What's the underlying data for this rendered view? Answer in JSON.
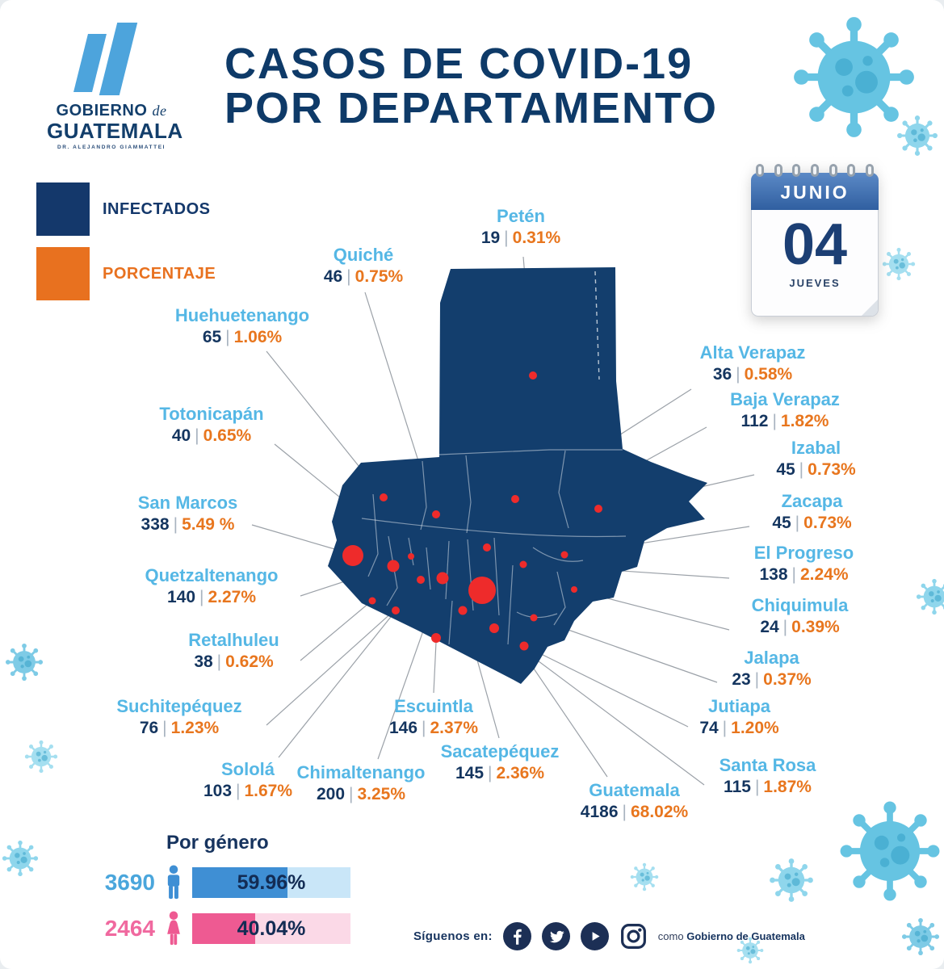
{
  "logo": {
    "gobierno": "GOBIERNO",
    "de": "de",
    "guatemala": "GUATEMALA",
    "subtitle": "DR. ALEJANDRO GIAMMATTEI"
  },
  "title": {
    "line1": "CASOS DE COVID-19",
    "line2": "POR DEPARTAMENTO"
  },
  "legend": {
    "infectados": "INFECTADOS",
    "porcentaje": "PORCENTAJE"
  },
  "calendar": {
    "month": "JUNIO",
    "day": "04",
    "weekday": "JUEVES"
  },
  "separator": "|",
  "departments": {
    "peten": {
      "name": "Petén",
      "cases": "19",
      "pct": "0.31%"
    },
    "quiche": {
      "name": "Quiché",
      "cases": "46",
      "pct": "0.75%"
    },
    "huehuetenango": {
      "name": "Huehuetenango",
      "cases": "65",
      "pct": "1.06%"
    },
    "totonicapan": {
      "name": "Totonicapán",
      "cases": "40",
      "pct": "0.65%"
    },
    "san_marcos": {
      "name": "San Marcos",
      "cases": "338",
      "pct": "5.49 %"
    },
    "quetzaltenango": {
      "name": "Quetzaltenango",
      "cases": "140",
      "pct": "2.27%"
    },
    "retalhuleu": {
      "name": "Retalhuleu",
      "cases": "38",
      "pct": "0.62%"
    },
    "suchitepequez": {
      "name": "Suchitepéquez",
      "cases": "76",
      "pct": "1.23%"
    },
    "solola": {
      "name": "Sololá",
      "cases": "103",
      "pct": "1.67%"
    },
    "chimaltenango": {
      "name": "Chimaltenango",
      "cases": "200",
      "pct": "3.25%"
    },
    "escuintla": {
      "name": "Escuintla",
      "cases": "146",
      "pct": "2.37%"
    },
    "sacatepequez": {
      "name": "Sacatepéquez",
      "cases": "145",
      "pct": "2.36%"
    },
    "guatemala_dept": {
      "name": "Guatemala",
      "cases": "4186",
      "pct": "68.02%"
    },
    "alta_verapaz": {
      "name": "Alta Verapaz",
      "cases": "36",
      "pct": "0.58%"
    },
    "baja_verapaz": {
      "name": "Baja Verapaz",
      "cases": "112",
      "pct": "1.82%"
    },
    "izabal": {
      "name": "Izabal",
      "cases": "45",
      "pct": "0.73%"
    },
    "zacapa": {
      "name": "Zacapa",
      "cases": "45",
      "pct": "0.73%"
    },
    "el_progreso": {
      "name": "El Progreso",
      "cases": "138",
      "pct": "2.24%"
    },
    "chiquimula": {
      "name": "Chiquimula",
      "cases": "24",
      "pct": "0.39%"
    },
    "jalapa": {
      "name": "Jalapa",
      "cases": "23",
      "pct": "0.37%"
    },
    "jutiapa": {
      "name": "Jutiapa",
      "cases": "74",
      "pct": "1.20%"
    },
    "santa_rosa": {
      "name": "Santa Rosa",
      "cases": "115",
      "pct": "1.87%"
    }
  },
  "gender": {
    "title": "Por género",
    "male": {
      "count": "3690",
      "pct": "59.96%",
      "pct_value": 59.96
    },
    "female": {
      "count": "2464",
      "pct": "40.04%",
      "pct_value": 40.04
    }
  },
  "footer": {
    "follow": "Síguenos en:",
    "como": "como",
    "account": "Gobierno de Guatemala"
  },
  "colors": {
    "navy": "#14386b",
    "orange": "#e8711f",
    "light_blue": "#55b7e5",
    "red_dot": "#ee2b2b",
    "map_fill": "#133e6d",
    "male_blue": "#3f8fd4",
    "female_pink": "#ee5a92",
    "virus_teal": "#7ecbe6"
  },
  "chart_data": [
    {
      "type": "heatmap",
      "subtype": "dot-map-of-guatemala",
      "title": "CASOS DE COVID-19 POR DEPARTAMENTO",
      "date": "JUNIO 04 JUEVES",
      "legend": [
        "INFECTADOS",
        "PORCENTAJE"
      ],
      "categories": [
        "Petén",
        "Quiché",
        "Huehuetenango",
        "Totonicapán",
        "San Marcos",
        "Quetzaltenango",
        "Retalhuleu",
        "Suchitepéquez",
        "Sololá",
        "Chimaltenango",
        "Escuintla",
        "Sacatepéquez",
        "Guatemala",
        "Alta Verapaz",
        "Baja Verapaz",
        "Izabal",
        "Zacapa",
        "El Progreso",
        "Chiquimula",
        "Jalapa",
        "Jutiapa",
        "Santa Rosa"
      ],
      "series": [
        {
          "name": "INFECTADOS",
          "values": [
            19,
            46,
            65,
            40,
            338,
            140,
            38,
            76,
            103,
            200,
            146,
            145,
            4186,
            36,
            112,
            45,
            45,
            138,
            24,
            23,
            74,
            115
          ]
        },
        {
          "name": "PORCENTAJE",
          "values": [
            0.31,
            0.75,
            1.06,
            0.65,
            5.49,
            2.27,
            0.62,
            1.23,
            1.67,
            3.25,
            2.37,
            2.36,
            68.02,
            0.58,
            1.82,
            0.73,
            0.73,
            2.24,
            0.39,
            0.37,
            1.2,
            1.87
          ]
        }
      ]
    },
    {
      "type": "bar",
      "title": "Por género",
      "categories": [
        "male",
        "female"
      ],
      "values": [
        59.96,
        40.04
      ],
      "counts": [
        3690,
        2464
      ],
      "xlim": [
        0,
        100
      ]
    }
  ]
}
